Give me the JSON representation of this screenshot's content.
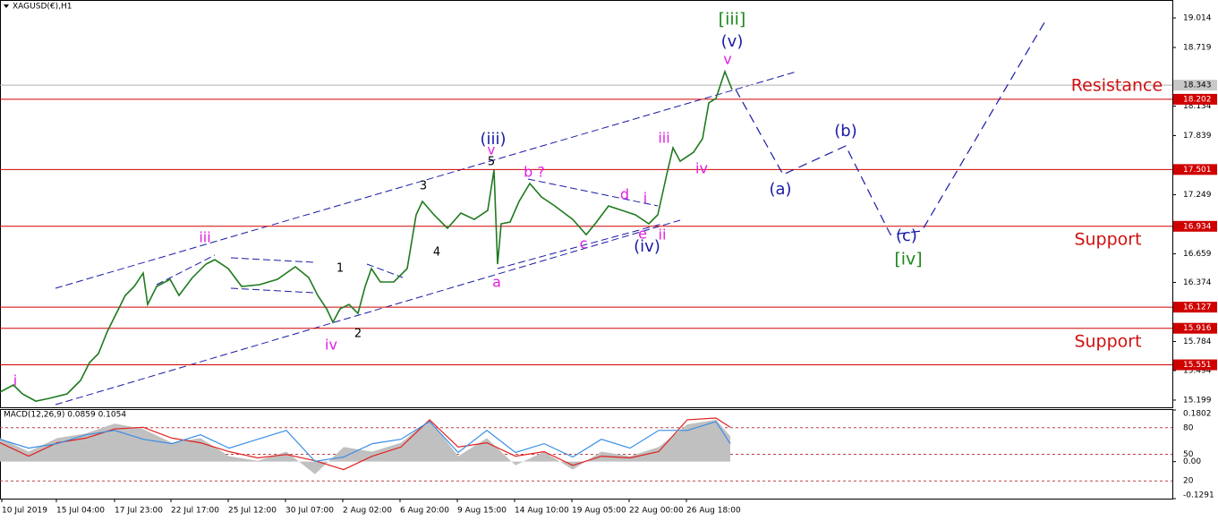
{
  "chart_data": [
    {
      "type": "line",
      "title": "XAGUSD(€),H1",
      "series": [
        {
          "color": "#1f7a1f",
          "x": [
            0,
            3.75,
            6.25,
            10,
            13.75,
            18.75,
            22.5,
            25,
            27.5,
            30,
            32.5,
            35,
            37.5,
            40,
            41.25,
            43.75,
            47.5,
            50,
            53.75,
            57.5,
            60,
            63.75,
            67.5,
            72.5,
            77.5,
            82.5,
            86.25,
            88.75,
            91.25,
            93,
            95,
            97.5,
            100,
            102,
            103.75,
            106.25,
            110,
            113.75,
            116.25,
            118,
            121.25,
            125,
            128.75,
            132.5,
            136.25,
            138,
            139,
            140,
            142.5,
            145,
            148,
            151.25,
            155,
            160,
            163.75,
            166.25,
            170,
            173.75,
            177.5,
            181.25,
            183.75,
            186.25,
            188,
            190,
            193.75,
            196.25,
            198,
            200,
            202.5,
            204.5
          ],
          "values": [
            15.279,
            15.35,
            15.261,
            15.189,
            15.216,
            15.261,
            15.395,
            15.573,
            15.663,
            15.886,
            16.064,
            16.244,
            16.333,
            16.467,
            16.154,
            16.333,
            16.405,
            16.244,
            16.422,
            16.556,
            16.601,
            16.512,
            16.333,
            16.351,
            16.405,
            16.53,
            16.422,
            16.244,
            16.11,
            15.976,
            16.11,
            16.154,
            16.064,
            16.333,
            16.512,
            16.378,
            16.378,
            16.512,
            17.048,
            17.182,
            17.048,
            16.914,
            17.066,
            17.003,
            17.093,
            17.495,
            16.556,
            16.959,
            16.977,
            17.182,
            17.361,
            17.227,
            17.137,
            17.003,
            16.851,
            16.959,
            17.137,
            17.093,
            17.048,
            16.959,
            17.048,
            17.45,
            17.718,
            17.584,
            17.674,
            17.808,
            18.165,
            18.21,
            18.478,
            18.299
          ]
        },
        {
          "color": "#1a1aa6",
          "dashed": true,
          "x": [
            205.5,
            218.75,
            236.25,
            248.75,
            257.5,
            292.5
          ],
          "values": [
            18.299,
            17.45,
            17.736,
            16.851,
            16.887,
            19.014
          ]
        }
      ],
      "xlim": [
        0,
        327.5
      ],
      "xticks": [
        {
          "value": 0.5,
          "label": "10 Jul 2019"
        },
        {
          "value": 15.75,
          "label": "15 Jul 04:00"
        },
        {
          "value": 32,
          "label": "17 Jul 23:00"
        },
        {
          "value": 47.75,
          "label": "22 Jul 17:00"
        },
        {
          "value": 63.75,
          "label": "25 Jul 12:00"
        },
        {
          "value": 79.75,
          "label": "30 Jul 07:00"
        },
        {
          "value": 95.75,
          "label": "2 Aug 02:00"
        },
        {
          "value": 111.75,
          "label": "6 Aug 20:00"
        },
        {
          "value": 127.75,
          "label": "9 Aug 15:00"
        },
        {
          "value": 143.75,
          "label": "14 Aug 10:00"
        },
        {
          "value": 159.75,
          "label": "19 Aug 05:00"
        },
        {
          "value": 175.75,
          "label": "22 Aug 00:00"
        },
        {
          "value": 191.75,
          "label": "26 Aug 18:00"
        }
      ],
      "ylim": [
        15.127,
        19.193
      ],
      "yticks": [
        19.014,
        18.719,
        18.134,
        17.839,
        17.249,
        16.659,
        16.374,
        15.784,
        15.494,
        15.199
      ],
      "levels": [
        18.202,
        17.501,
        16.934,
        16.127,
        15.916,
        15.551
      ],
      "level_color": "#d00000",
      "last_price": 18.343,
      "annotations": [
        {
          "text": "[iii]",
          "color": "#1a8a1a"
        },
        {
          "text": "(v)",
          "color": "#1a1aa6"
        },
        {
          "text": "v",
          "color": "#e020e0"
        },
        {
          "text": "(iii)",
          "color": "#1a1aa6"
        },
        {
          "text": "v",
          "color": "#e020e0"
        },
        {
          "text": "5",
          "color": "#000000"
        },
        {
          "text": "3",
          "color": "#000000"
        },
        {
          "text": "4",
          "color": "#000000"
        },
        {
          "text": "1",
          "color": "#000000"
        },
        {
          "text": "2",
          "color": "#000000"
        },
        {
          "text": "iii",
          "color": "#e020e0"
        },
        {
          "text": "iv",
          "color": "#e020e0"
        },
        {
          "text": "i",
          "color": "#e020e0"
        },
        {
          "text": "b ?",
          "color": "#e020e0"
        },
        {
          "text": "a",
          "color": "#e020e0"
        },
        {
          "text": "c",
          "color": "#e020e0"
        },
        {
          "text": "d",
          "color": "#e020e0"
        },
        {
          "text": "e",
          "color": "#e020e0"
        },
        {
          "text": "i",
          "color": "#e020e0"
        },
        {
          "text": "ii",
          "color": "#e020e0"
        },
        {
          "text": "(iv)",
          "color": "#1a1aa6"
        },
        {
          "text": "iii",
          "color": "#e020e0"
        },
        {
          "text": "iv",
          "color": "#e020e0"
        },
        {
          "text": "(a)",
          "color": "#1a1aa6"
        },
        {
          "text": "(b)",
          "color": "#1a1aa6"
        },
        {
          "text": "(c)",
          "color": "#1a1aa6"
        },
        {
          "text": "[iv]",
          "color": "#1a8a1a"
        },
        {
          "text": "Resistance",
          "color": "#d01010"
        },
        {
          "text": "Support",
          "color": "#d01010"
        },
        {
          "text": "Support",
          "color": "#d01010"
        }
      ]
    },
    {
      "type": "macd",
      "title": "MACD(12,26,9) 0.0859 0.1054",
      "x": [
        0,
        8,
        16,
        24,
        32,
        40,
        48,
        56,
        64,
        72,
        80,
        88,
        96,
        104,
        112,
        120,
        128,
        136,
        144,
        152,
        160,
        168,
        176,
        184,
        192,
        200,
        204
      ],
      "series": [
        {
          "type": "area",
          "color": "#c0c0c0",
          "values": [
            0.082,
            0.035,
            0.082,
            0.098,
            0.133,
            0.114,
            0.066,
            0.082,
            0.019,
            0.003,
            0.035,
            -0.044,
            0.051,
            0.035,
            0.066,
            0.146,
            0.019,
            0.082,
            -0.013,
            0.035,
            -0.028,
            0.035,
            0.019,
            0.051,
            0.13,
            0.146,
            0.089
          ]
        },
        {
          "color": "#e02020",
          "values": [
            0.066,
            0.019,
            0.066,
            0.082,
            0.114,
            0.12,
            0.082,
            0.066,
            0.035,
            0.013,
            0.025,
            0.003,
            -0.028,
            0.019,
            0.051,
            0.146,
            0.051,
            0.066,
            0.019,
            0.035,
            -0.013,
            0.019,
            0.013,
            0.035,
            0.146,
            0.152,
            0.12
          ]
        },
        {
          "color": "#3a8ee6",
          "axis": "y2",
          "values": [
            67,
            57,
            62,
            72,
            77,
            67,
            62,
            72,
            57,
            67,
            77,
            42,
            47,
            62,
            67,
            87,
            52,
            77,
            52,
            62,
            47,
            67,
            57,
            77,
            77,
            87,
            62
          ]
        }
      ],
      "ylim": [
        -0.1291,
        0.1802
      ],
      "yticks": [
        0.1802,
        {
          "value": 0,
          "label": "0.00"
        },
        -0.1291
      ],
      "y2lim": [
        0,
        100
      ],
      "y2ticks": [
        80,
        50,
        20
      ]
    }
  ]
}
